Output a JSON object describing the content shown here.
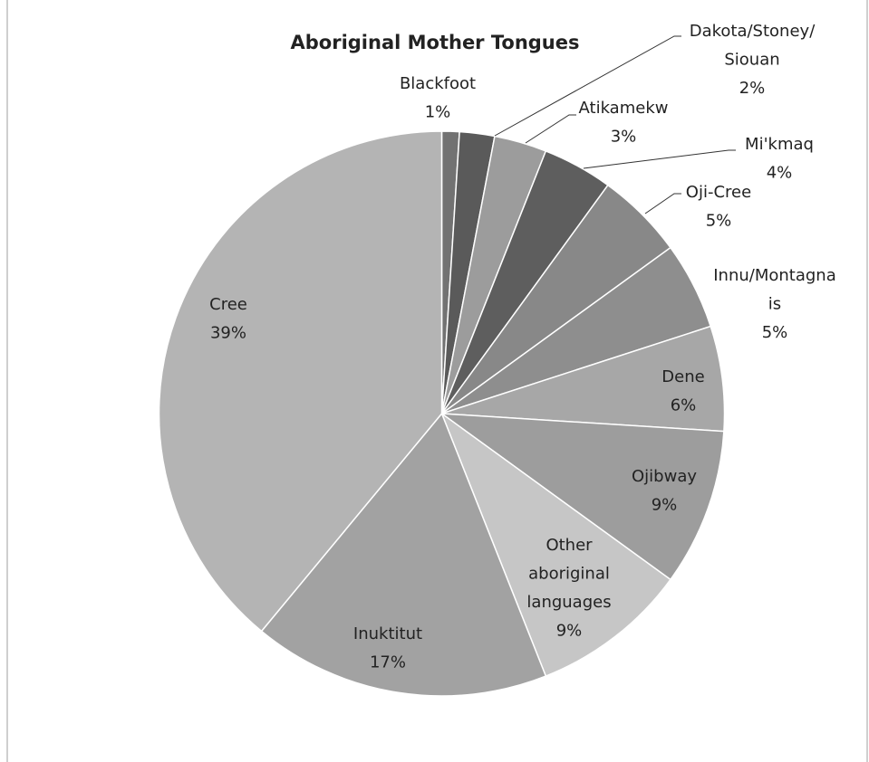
{
  "chart_data": {
    "type": "pie",
    "title": "Aboriginal Mother Tongues",
    "categories": [
      "Blackfoot",
      "Dakota/Stoney/Siouan",
      "Atikamekw",
      "Mi'kmaq",
      "Oji-Cree",
      "Innu/Montagnais",
      "Dene",
      "Ojibway",
      "Other aboriginal languages",
      "Inuktitut",
      "Cree"
    ],
    "values": [
      1,
      2,
      3,
      4,
      5,
      5,
      6,
      9,
      9,
      17,
      39
    ],
    "value_labels": [
      "1%",
      "2%",
      "3%",
      "4%",
      "5%",
      "5%",
      "6%",
      "9%",
      "9%",
      "17%",
      "39%"
    ],
    "colors": [
      "#727272",
      "#5a5a5a",
      "#9c9c9c",
      "#5e5e5e",
      "#888888",
      "#8e8e8e",
      "#a7a7a7",
      "#9d9d9d",
      "#c6c6c6",
      "#a2a2a2",
      "#b4b4b4"
    ]
  }
}
